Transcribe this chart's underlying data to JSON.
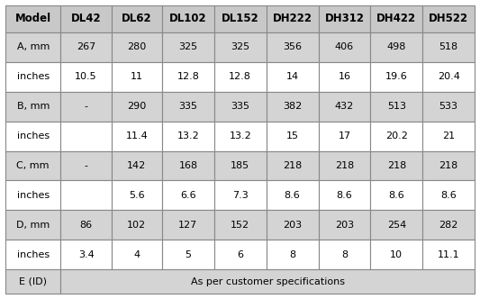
{
  "columns": [
    "Model",
    "DL42",
    "DL62",
    "DL102",
    "DL152",
    "DH222",
    "DH312",
    "DH422",
    "DH522"
  ],
  "rows": [
    [
      "A, mm",
      "267",
      "280",
      "325",
      "325",
      "356",
      "406",
      "498",
      "518"
    ],
    [
      "inches",
      "10.5",
      "11",
      "12.8",
      "12.8",
      "14",
      "16",
      "19.6",
      "20.4"
    ],
    [
      "B, mm",
      "-",
      "290",
      "335",
      "335",
      "382",
      "432",
      "513",
      "533"
    ],
    [
      "inches",
      "",
      "11.4",
      "13.2",
      "13.2",
      "15",
      "17",
      "20.2",
      "21"
    ],
    [
      "C, mm",
      "-",
      "142",
      "168",
      "185",
      "218",
      "218",
      "218",
      "218"
    ],
    [
      "inches",
      "",
      "5.6",
      "6.6",
      "7.3",
      "8.6",
      "8.6",
      "8.6",
      "8.6"
    ],
    [
      "D, mm",
      "86",
      "102",
      "127",
      "152",
      "203",
      "203",
      "254",
      "282"
    ],
    [
      "inches",
      "3.4",
      "4",
      "5",
      "6",
      "8",
      "8",
      "10",
      "11.1"
    ],
    [
      "E (ID)",
      "As per customer specifications",
      "",
      "",
      "",
      "",
      "",
      "",
      ""
    ]
  ],
  "header_bg": "#c8c8c8",
  "shaded_row_bg": "#d4d4d4",
  "white_row_bg": "#ffffff",
  "footer_bg": "#d4d4d4",
  "border_color": "#888888",
  "font_color": "#000000",
  "header_font_size": 8.5,
  "cell_font_size": 8.0,
  "fig_width": 5.33,
  "fig_height": 3.32
}
